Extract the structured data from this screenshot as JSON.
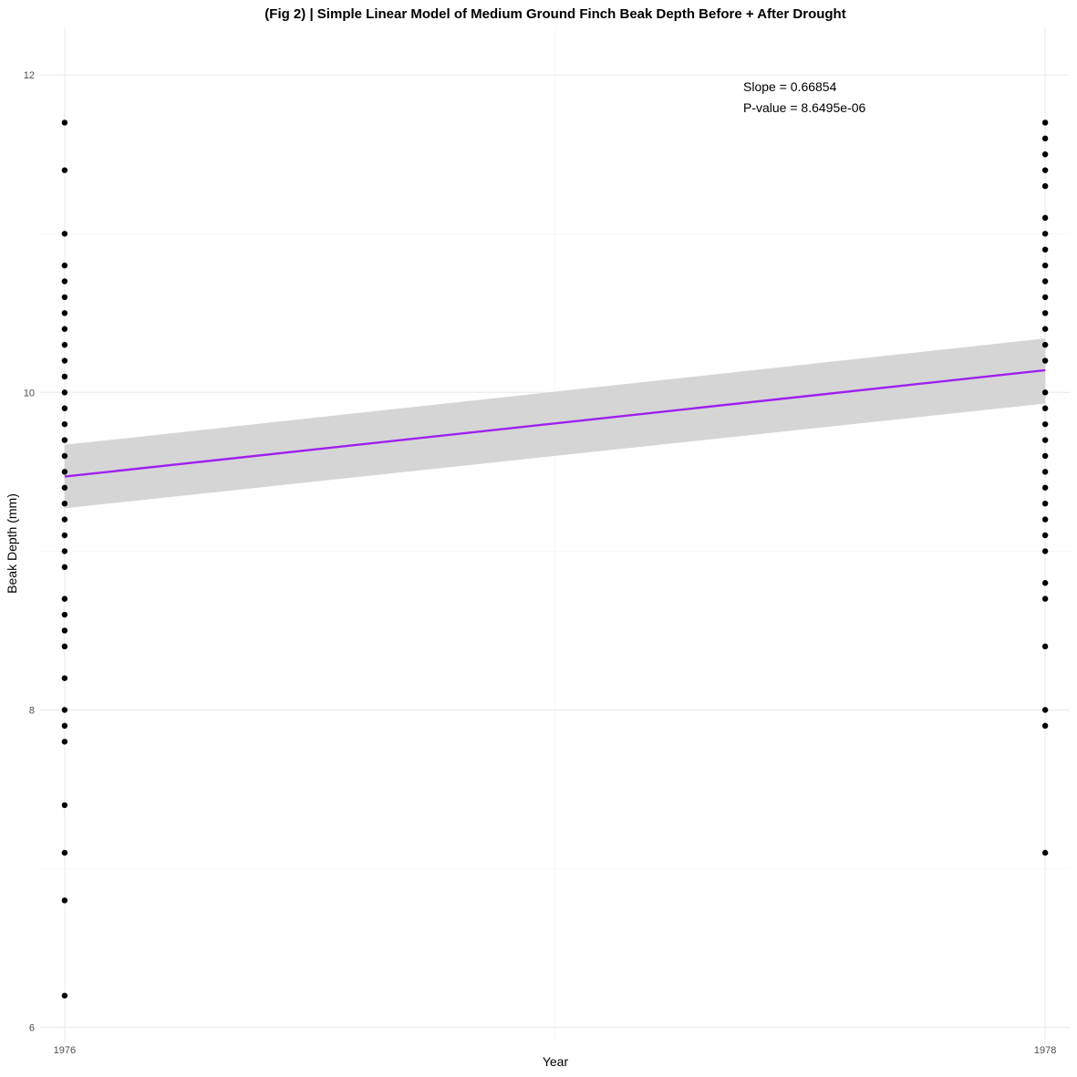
{
  "chart_data": {
    "type": "scatter",
    "title": "(Fig 2) | Simple Linear Model of Medium Ground Finch Beak Depth Before + After Drought",
    "xlabel": "Year",
    "ylabel": "Beak Depth (mm)",
    "xlim": [
      1975.95,
      1978.05
    ],
    "ylim": [
      5.9,
      12.3
    ],
    "x_ticks": [
      1976,
      1978
    ],
    "x_tick_labels": [
      "1976",
      "1978"
    ],
    "y_ticks": [
      6,
      8,
      10,
      12
    ],
    "y_tick_labels": [
      "6",
      "8",
      "10",
      "12"
    ],
    "grid": true,
    "colors": {
      "points": "#000000",
      "fit_line": "#a020f0",
      "confidence_band": "#d3d3d3",
      "grid": "#ebebeb"
    },
    "series": [
      {
        "x": 1976,
        "values": [
          11.7,
          11.4,
          11.0,
          10.8,
          10.7,
          10.6,
          10.5,
          10.4,
          10.3,
          10.2,
          10.1,
          10.0,
          9.9,
          9.8,
          9.7,
          9.6,
          9.5,
          9.4,
          9.3,
          9.2,
          9.1,
          9.0,
          8.9,
          8.7,
          8.6,
          8.5,
          8.4,
          8.2,
          8.0,
          7.9,
          7.8,
          7.4,
          7.1,
          6.8,
          6.2
        ]
      },
      {
        "x": 1978,
        "values": [
          11.7,
          11.6,
          11.5,
          11.4,
          11.3,
          11.1,
          11.0,
          10.9,
          10.8,
          10.7,
          10.6,
          10.5,
          10.4,
          10.3,
          10.2,
          10.0,
          9.9,
          9.8,
          9.7,
          9.6,
          9.5,
          9.4,
          9.3,
          9.2,
          9.1,
          9.0,
          8.8,
          8.7,
          8.4,
          8.0,
          7.9,
          7.1
        ]
      }
    ],
    "fit": {
      "x": [
        1976,
        1978
      ],
      "y": [
        9.47,
        10.14
      ],
      "ci_lower": [
        9.27,
        9.93
      ],
      "ci_upper": [
        9.67,
        10.34
      ]
    },
    "annotations": {
      "slope_label": "Slope =  0.66854",
      "pvalue_label": "P-value =  8.6495e-06"
    }
  }
}
